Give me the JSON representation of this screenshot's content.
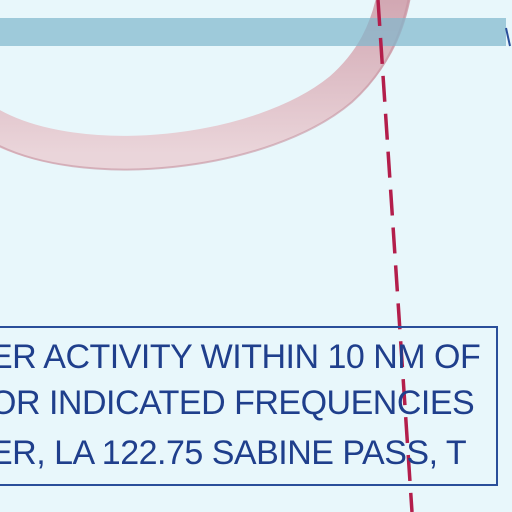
{
  "colors": {
    "background": "#e8f7fb",
    "shelf_band": "#8fc1d3",
    "arc_airway": "#d9b7c0",
    "boundary_dashed": "#b31e4b",
    "notice_text": "#1f3f8c",
    "notice_border": "#2a4f9a"
  },
  "notice": {
    "lines": [
      "ER ACTIVITY WITHIN 10 NM OF",
      "OR INDICATED FREQUENCIES",
      "ER, LA 122.75 SABINE PASS, T"
    ]
  }
}
